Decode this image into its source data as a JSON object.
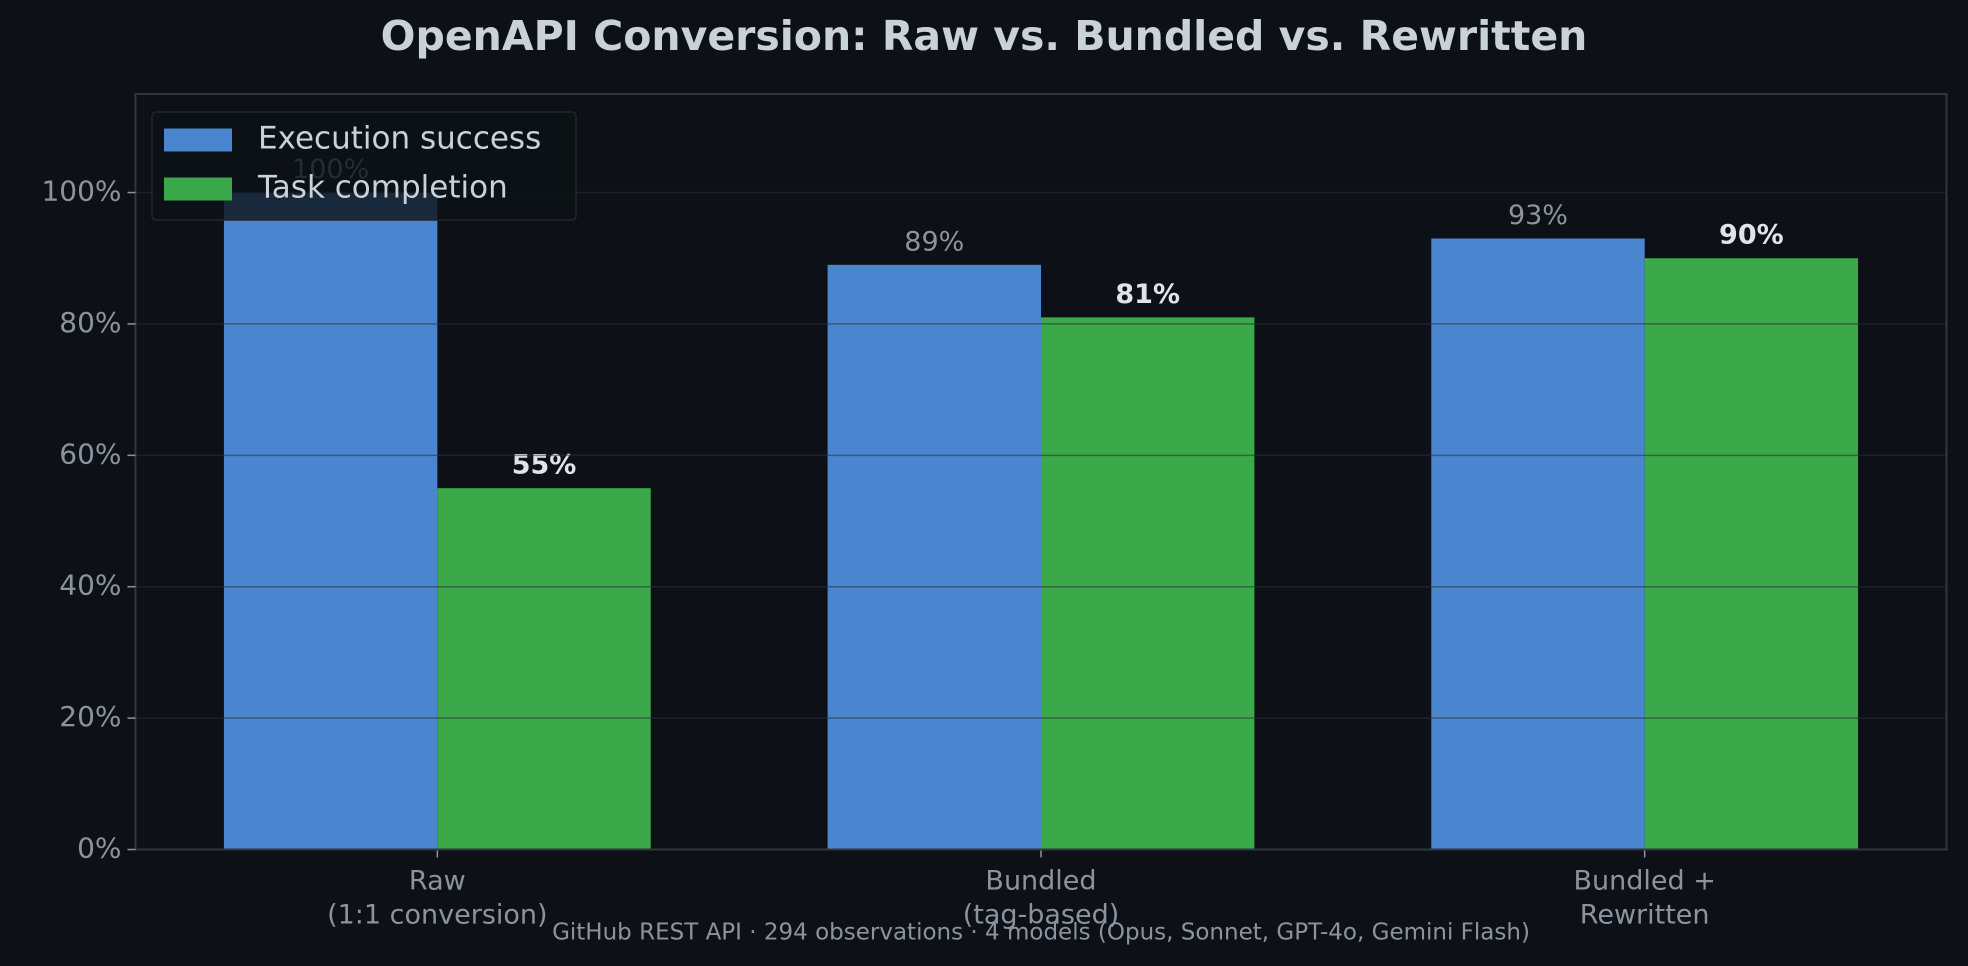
{
  "chart_data": {
    "type": "bar",
    "title": "OpenAPI Conversion: Raw vs. Bundled vs. Rewritten",
    "categories": [
      [
        "Raw",
        "(1:1 conversion)"
      ],
      [
        "Bundled",
        "(tag-based)"
      ],
      [
        "Bundled +",
        "Rewritten"
      ]
    ],
    "series": [
      {
        "name": "Execution success",
        "color": "#4a86cf",
        "values": [
          100,
          89,
          93
        ],
        "value_labels": [
          "100%",
          "89%",
          "93%"
        ]
      },
      {
        "name": "Task completion",
        "color": "#3ba84a",
        "values": [
          55,
          81,
          90
        ],
        "value_labels": [
          "55%",
          "81%",
          "90%"
        ]
      }
    ],
    "ylim": [
      0,
      115
    ],
    "yticks": [
      {
        "value": 0,
        "label": "0%"
      },
      {
        "value": 20,
        "label": "20%"
      },
      {
        "value": 40,
        "label": "40%"
      },
      {
        "value": 60,
        "label": "60%"
      },
      {
        "value": 80,
        "label": "80%"
      },
      {
        "value": 100,
        "label": "100%"
      }
    ],
    "grid": true,
    "legend": "upper-left",
    "footnote": "GitHub REST API · 294 observations · 4 models (Opus, Sonnet, GPT-4o, Gemini Flash)"
  }
}
